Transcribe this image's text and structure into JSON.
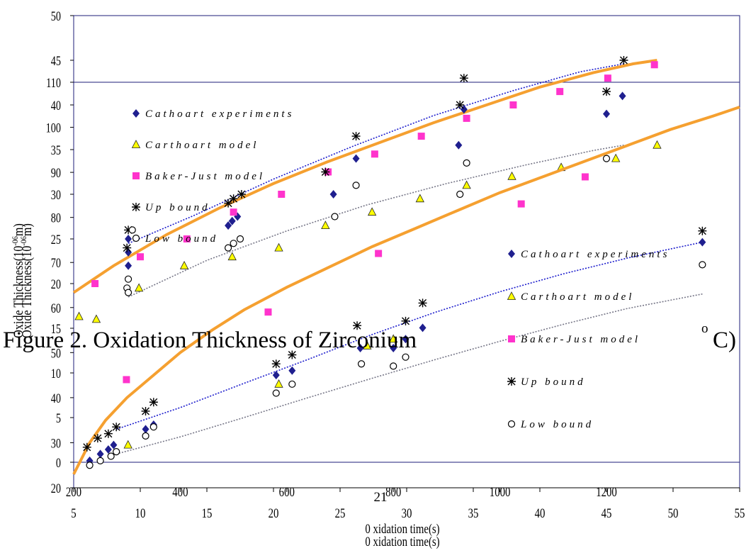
{
  "figure": {
    "title_left": "Figure 2. Oxidation Thickness of Zirconium",
    "title_right": "C)",
    "title_degree": "o",
    "page_number": "21"
  },
  "colors": {
    "cathcart_experiments": "#1f1f8f",
    "cathcart_model": "#ffff00",
    "baker_just_model": "#ff33cc",
    "bound": "#000000",
    "fit_orange": "#f5a030",
    "fit_blue": "#1a1acc",
    "fit_gray": "#777788",
    "frame": "#1c1c7a"
  },
  "chart_data": [
    {
      "type": "scatter",
      "name_note": "lower-left panel",
      "xlabel": "0 xidation time(s)",
      "ylabel": "Oxide Thickness(10^-06 m)",
      "ylabel_display": "Oxide Thickness(10",
      "ylabel_exponent": "-06",
      "ylabel_unit": "m)",
      "xlim": [
        5,
        55
      ],
      "ylim": [
        0,
        50
      ],
      "x_ticks": [
        "5",
        "10",
        "15",
        "20",
        "25",
        "30",
        "35",
        "40",
        "45",
        "50",
        "55"
      ],
      "y_ticks": [
        "0",
        "5",
        "10",
        "15",
        "20",
        "25",
        "30",
        "35",
        "40",
        "45",
        "50"
      ],
      "legend": [
        {
          "label": "Cathoart experiments",
          "marker": "diamond"
        },
        {
          "label": "Carthoart model",
          "marker": "triangle"
        },
        {
          "label": "Baker-Just model",
          "marker": "square"
        },
        {
          "label": "Up bound",
          "marker": "star"
        },
        {
          "label": "Low bound",
          "marker": "circle"
        }
      ],
      "legend_placement": "left",
      "series": [
        {
          "name": "Cathoart experiments",
          "marker": "diamond",
          "points": [
            [
              9.1,
              25
            ],
            [
              9.1,
              23.5
            ],
            [
              9.1,
              22
            ],
            [
              16.6,
              26.5
            ],
            [
              16.9,
              27
            ],
            [
              17.3,
              27.5
            ],
            [
              24.5,
              30
            ],
            [
              26.2,
              34
            ],
            [
              33.9,
              35.5
            ],
            [
              34.3,
              39.5
            ],
            [
              45.0,
              39
            ],
            [
              46.2,
              41
            ]
          ]
        },
        {
          "name": "Carthoart model",
          "marker": "triangle",
          "points": [
            [
              6.7,
              16
            ],
            [
              9.9,
              19.5
            ],
            [
              13.3,
              22
            ],
            [
              16.9,
              23
            ],
            [
              20.4,
              24
            ],
            [
              23.9,
              26.5
            ],
            [
              27.4,
              28
            ],
            [
              31.0,
              29.5
            ],
            [
              34.5,
              31
            ],
            [
              37.9,
              32
            ],
            [
              41.6,
              33
            ],
            [
              45.7,
              34
            ],
            [
              48.8,
              35.5
            ]
          ]
        },
        {
          "name": "Baker-Just model",
          "marker": "square",
          "points": [
            [
              6.6,
              20
            ],
            [
              10.0,
              23
            ],
            [
              13.5,
              25
            ],
            [
              17.0,
              28
            ],
            [
              20.6,
              30
            ],
            [
              24.1,
              32.5
            ],
            [
              27.6,
              34.5
            ],
            [
              31.1,
              36.5
            ],
            [
              34.5,
              38.5
            ],
            [
              38.0,
              40
            ],
            [
              41.5,
              41.5
            ],
            [
              45.1,
              43
            ],
            [
              48.6,
              44.5
            ]
          ]
        },
        {
          "name": "Up bound",
          "marker": "star",
          "points": [
            [
              9.1,
              26
            ],
            [
              9.0,
              24
            ],
            [
              17.0,
              29.5
            ],
            [
              17.6,
              30
            ],
            [
              16.6,
              29
            ],
            [
              23.9,
              32.5
            ],
            [
              26.2,
              36.5
            ],
            [
              34.3,
              43
            ],
            [
              34.0,
              40
            ],
            [
              45.0,
              41.5
            ],
            [
              46.3,
              45
            ]
          ]
        },
        {
          "name": "Low bound",
          "marker": "circle",
          "points": [
            [
              9.4,
              26
            ],
            [
              9.1,
              20.5
            ],
            [
              9.0,
              19.5
            ],
            [
              9.1,
              19
            ],
            [
              16.6,
              24
            ],
            [
              17.0,
              24.5
            ],
            [
              17.5,
              25
            ],
            [
              24.6,
              27.5
            ],
            [
              26.2,
              31
            ],
            [
              34.0,
              30
            ],
            [
              34.5,
              33.5
            ],
            [
              45.0,
              34
            ]
          ]
        }
      ],
      "curves": [
        {
          "style": "orange-fit",
          "points": [
            [
              5,
              19
            ],
            [
              8,
              22
            ],
            [
              12,
              25.5
            ],
            [
              16,
              28.5
            ],
            [
              20,
              31.2
            ],
            [
              24,
              33.6
            ],
            [
              28,
              35.8
            ],
            [
              32,
              38
            ],
            [
              36,
              40
            ],
            [
              40,
              42
            ],
            [
              44,
              43.6
            ],
            [
              47,
              44.6
            ],
            [
              48.8,
              45
            ]
          ]
        },
        {
          "style": "blue-dotted",
          "points": [
            [
              9.1,
              24.5
            ],
            [
              14,
              27.6
            ],
            [
              20,
              31.7
            ],
            [
              26,
              35.4
            ],
            [
              32,
              38.8
            ],
            [
              38,
              41.6
            ],
            [
              43,
              43.7
            ],
            [
              46.3,
              44.6
            ]
          ]
        },
        {
          "style": "gray-dotted",
          "points": [
            [
              9.1,
              18.5
            ],
            [
              15,
              22.6
            ],
            [
              21,
              25.9
            ],
            [
              27,
              28.8
            ],
            [
              33,
              31.2
            ],
            [
              39,
              33.3
            ],
            [
              44,
              34.9
            ],
            [
              46.3,
              35.5
            ]
          ]
        }
      ]
    },
    {
      "type": "scatter",
      "name_note": "overlaid larger panel",
      "xlabel": "0 xidation time(s)",
      "ylabel": "Oxide Thickness(10^-06 m)",
      "ylabel_display": "Oxide Thickness(10",
      "ylabel_exponent": "-06",
      "ylabel_unit": "m)",
      "xlim": [
        200,
        1450
      ],
      "ylim": [
        20,
        110
      ],
      "x_ticks": [
        "200",
        "400",
        "600",
        "800",
        "1000",
        "1200"
      ],
      "y_ticks": [
        "20",
        "30",
        "40",
        "50",
        "60",
        "70",
        "80",
        "90",
        "100",
        "110"
      ],
      "legend": [
        {
          "label": "Cathoart experiments",
          "marker": "diamond"
        },
        {
          "label": "Carthoart model",
          "marker": "triangle"
        },
        {
          "label": "Baker-Just model",
          "marker": "square"
        },
        {
          "label": "Up bound",
          "marker": "star"
        },
        {
          "label": "Low bound",
          "marker": "circle"
        }
      ],
      "legend_placement": "right",
      "series": [
        {
          "name": "Cathoart experiments",
          "marker": "diamond",
          "points": [
            [
              230,
              26
            ],
            [
              250,
              27.5
            ],
            [
              265,
              28.5
            ],
            [
              275,
              29.5
            ],
            [
              335,
              33
            ],
            [
              350,
              34
            ],
            [
              580,
              45
            ],
            [
              610,
              46
            ],
            [
              738,
              51
            ],
            [
              800,
              51
            ],
            [
              823,
              53
            ],
            [
              855,
              55.5
            ],
            [
              1380,
              74.5
            ]
          ]
        },
        {
          "name": "Carthoart model",
          "marker": "triangle",
          "points": [
            [
              210,
              58
            ],
            [
              302,
              29.5
            ],
            [
              585,
              43
            ],
            [
              751,
              51.5
            ],
            [
              800,
              53
            ]
          ]
        },
        {
          "name": "Baker-Just model",
          "marker": "square",
          "points": [
            [
              299,
              44
            ],
            [
              565,
              59
            ],
            [
              772,
              72
            ],
            [
              1040,
              83
            ],
            [
              1160,
              89
            ]
          ]
        },
        {
          "name": "Up bound",
          "marker": "star",
          "points": [
            [
              225,
              29
            ],
            [
              245,
              31
            ],
            [
              265,
              32
            ],
            [
              280,
              33.5
            ],
            [
              335,
              37
            ],
            [
              350,
              39
            ],
            [
              580,
              47.5
            ],
            [
              610,
              49.5
            ],
            [
              732,
              56
            ],
            [
              823,
              57
            ],
            [
              855,
              61
            ],
            [
              1380,
              77
            ]
          ]
        },
        {
          "name": "Low bound",
          "marker": "circle",
          "points": [
            [
              230,
              25
            ],
            [
              250,
              26
            ],
            [
              270,
              27
            ],
            [
              280,
              28
            ],
            [
              335,
              31.5
            ],
            [
              350,
              33.5
            ],
            [
              580,
              41
            ],
            [
              610,
              43
            ],
            [
              740,
              47.5
            ],
            [
              800,
              47
            ],
            [
              823,
              49
            ],
            [
              1380,
              69.5
            ]
          ]
        }
      ],
      "curves": [
        {
          "style": "orange-fit",
          "points": [
            [
              200,
              23
            ],
            [
              230,
              30
            ],
            [
              260,
              35
            ],
            [
              300,
              40
            ],
            [
              350,
              45
            ],
            [
              400,
              50
            ],
            [
              460,
              55
            ],
            [
              520,
              59.5
            ],
            [
              600,
              64.5
            ],
            [
              680,
              69
            ],
            [
              760,
              73.5
            ],
            [
              840,
              77.5
            ],
            [
              920,
              81.5
            ],
            [
              1000,
              85.5
            ],
            [
              1080,
              89
            ],
            [
              1160,
              92.5
            ],
            [
              1240,
              96
            ],
            [
              1320,
              99.5
            ],
            [
              1400,
              102.5
            ],
            [
              1450,
              104.5
            ]
          ]
        },
        {
          "style": "blue-dotted",
          "points": [
            [
              280,
              33
            ],
            [
              400,
              37.8
            ],
            [
              520,
              43.2
            ],
            [
              640,
              48.5
            ],
            [
              760,
              54
            ],
            [
              880,
              59
            ],
            [
              1000,
              63.5
            ],
            [
              1120,
              67.5
            ],
            [
              1240,
              71
            ],
            [
              1380,
              74.5
            ]
          ]
        },
        {
          "style": "gray-dotted",
          "points": [
            [
              280,
              27.5
            ],
            [
              400,
              31.3
            ],
            [
              520,
              35.6
            ],
            [
              640,
              40
            ],
            [
              760,
              44.3
            ],
            [
              880,
              48.5
            ],
            [
              1000,
              52.5
            ],
            [
              1120,
              56.3
            ],
            [
              1240,
              59.8
            ],
            [
              1380,
              63
            ]
          ]
        }
      ]
    }
  ]
}
